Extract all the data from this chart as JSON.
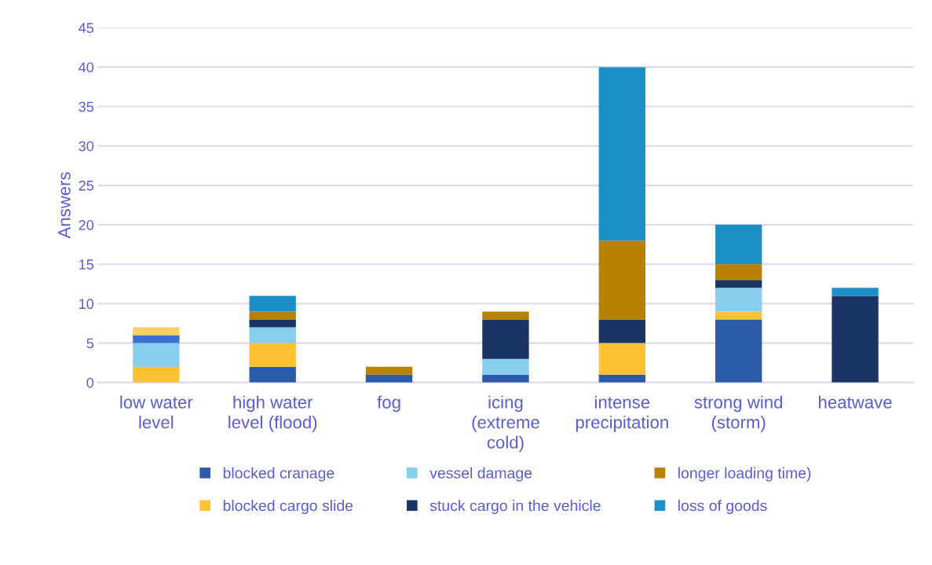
{
  "chart_data": {
    "type": "bar",
    "stacked": true,
    "ylabel": "Answers",
    "categories": [
      "low water\nlevel",
      "high water\nlevel (flood)",
      "fog",
      "icing\n(extreme\ncold)",
      "intense\nprecipitation",
      "strong wind\n(storm)",
      "heatwave"
    ],
    "series": [
      {
        "name": "blocked cranage",
        "color": "#2b5aa8",
        "values": [
          0,
          2,
          1,
          1,
          1,
          8,
          0
        ]
      },
      {
        "name": "blocked cargo slide",
        "color": "#fec133",
        "values": [
          2,
          3,
          0,
          0,
          4,
          1,
          0
        ]
      },
      {
        "name": "vessel damage",
        "color": "#87ceed",
        "values": [
          3,
          2,
          0,
          2,
          0,
          3,
          0
        ]
      },
      {
        "name": "stuck cargo in the vehicle",
        "color": "#1a3464",
        "values": [
          0,
          1,
          0,
          5,
          3,
          1,
          11
        ]
      },
      {
        "name": "longer loading time)",
        "color": "#b88200",
        "values": [
          0,
          1,
          1,
          1,
          10,
          2,
          0
        ]
      },
      {
        "name": "loss of goods",
        "color": "#1e8fc6",
        "values": [
          0,
          2,
          0,
          0,
          22,
          5,
          1
        ]
      },
      {
        "color": "#3d70cc",
        "values": [
          1,
          0,
          0,
          0,
          0,
          0,
          0
        ]
      },
      {
        "color": "#ffce5e",
        "values": [
          1,
          0,
          0,
          0,
          0,
          0,
          0
        ]
      }
    ],
    "ylim": [
      0,
      45
    ],
    "yticks": [
      0,
      5,
      10,
      15,
      20,
      25,
      30,
      35,
      40,
      45
    ],
    "grid": "y",
    "legend": "bottom"
  }
}
